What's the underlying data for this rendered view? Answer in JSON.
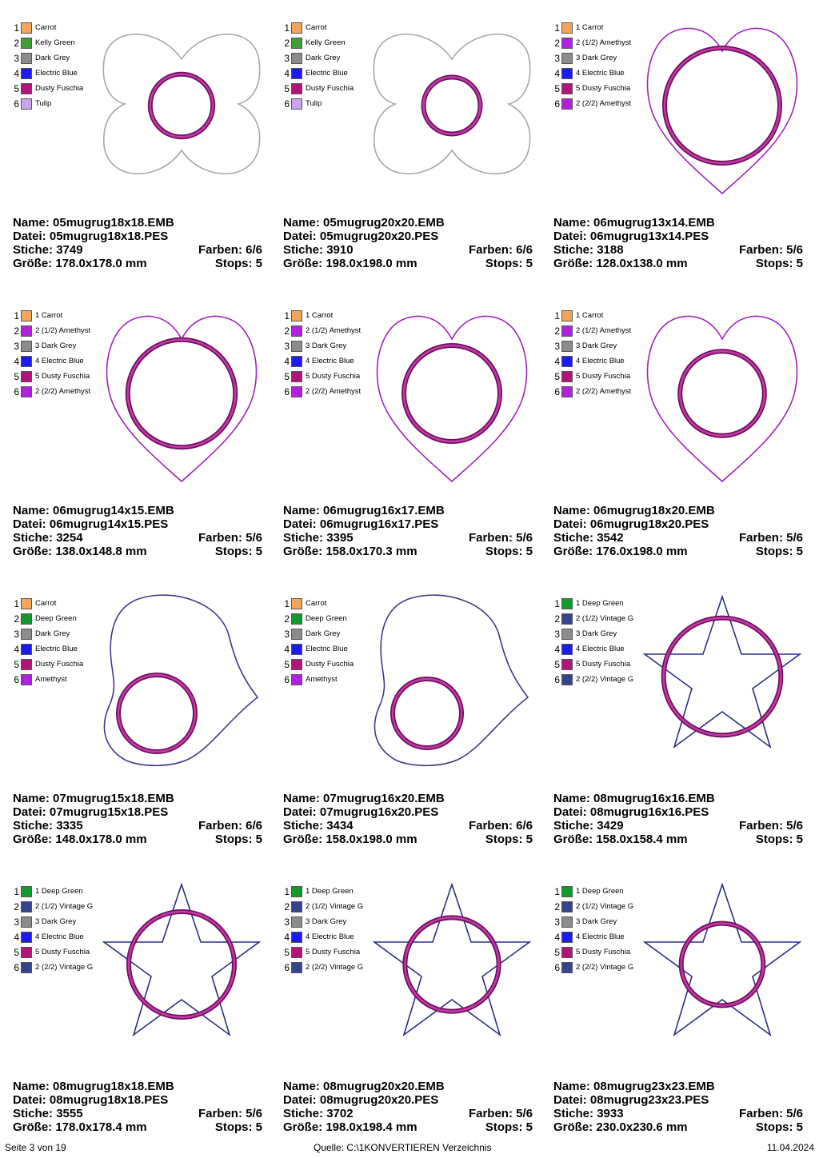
{
  "labels": {
    "name": "Name:",
    "file": "Datei:",
    "stitches": "Stiche:",
    "colors": "Farben:",
    "size": "Größe:",
    "stops": "Stops:"
  },
  "designs": [
    {
      "shape": "flower",
      "ring": 0.42,
      "name": "05mugrug18x18.EMB",
      "file": "05mugrug18x18.PES",
      "stitches": "3749",
      "colors": "6/6",
      "size": "178.0x178.0 mm",
      "stops": "5",
      "legend": [
        {
          "num": "1",
          "label": "Carrot",
          "color": "#f4a35a"
        },
        {
          "num": "2",
          "label": "Kelly Green",
          "color": "#3f9e3a"
        },
        {
          "num": "3",
          "label": "Dark Grey",
          "color": "#8c8c8c"
        },
        {
          "num": "4",
          "label": "Electric Blue",
          "color": "#1b1bf0"
        },
        {
          "num": "5",
          "label": "Dusty Fuschia",
          "color": "#b3127c"
        },
        {
          "num": "6",
          "label": "Tulip",
          "color": "#caa4ee"
        }
      ]
    },
    {
      "shape": "flower",
      "ring": 0.38,
      "name": "05mugrug20x20.EMB",
      "file": "05mugrug20x20.PES",
      "stitches": "3910",
      "colors": "6/6",
      "size": "198.0x198.0 mm",
      "stops": "5",
      "legend": [
        {
          "num": "1",
          "label": "Carrot",
          "color": "#f4a35a"
        },
        {
          "num": "2",
          "label": "Kelly Green",
          "color": "#3f9e3a"
        },
        {
          "num": "3",
          "label": "Dark Grey",
          "color": "#8c8c8c"
        },
        {
          "num": "4",
          "label": "Electric Blue",
          "color": "#1b1bf0"
        },
        {
          "num": "5",
          "label": "Dusty Fuschia",
          "color": "#b3127c"
        },
        {
          "num": "6",
          "label": "Tulip",
          "color": "#caa4ee"
        }
      ]
    },
    {
      "shape": "heart",
      "ring": 0.6,
      "name": "06mugrug13x14.EMB",
      "file": "06mugrug13x14.PES",
      "stitches": "3188",
      "colors": "5/6",
      "size": "128.0x138.0 mm",
      "stops": "5",
      "legend": [
        {
          "num": "1",
          "label": "1 Carrot",
          "color": "#f4a35a"
        },
        {
          "num": "2",
          "label": "2 (1/2) Amethyst",
          "color": "#b31fe0"
        },
        {
          "num": "3",
          "label": "3 Dark Grey",
          "color": "#8c8c8c"
        },
        {
          "num": "4",
          "label": "4 Electric Blue",
          "color": "#1b1bf0"
        },
        {
          "num": "5",
          "label": "5 Dusty Fuschia",
          "color": "#b3127c"
        },
        {
          "num": "6",
          "label": "2 (2/2) Amethyst",
          "color": "#b31fe0"
        }
      ]
    },
    {
      "shape": "heart",
      "ring": 0.56,
      "name": "06mugrug14x15.EMB",
      "file": "06mugrug14x15.PES",
      "stitches": "3254",
      "colors": "5/6",
      "size": "138.0x148.8 mm",
      "stops": "5",
      "legend": [
        {
          "num": "1",
          "label": "1 Carrot",
          "color": "#f4a35a"
        },
        {
          "num": "2",
          "label": "2 (1/2) Amethyst",
          "color": "#b31fe0"
        },
        {
          "num": "3",
          "label": "3 Dark Grey",
          "color": "#8c8c8c"
        },
        {
          "num": "4",
          "label": "4 Electric Blue",
          "color": "#1b1bf0"
        },
        {
          "num": "5",
          "label": "5 Dusty Fuschia",
          "color": "#b3127c"
        },
        {
          "num": "6",
          "label": "2 (2/2) Amethyst",
          "color": "#b31fe0"
        }
      ]
    },
    {
      "shape": "heart",
      "ring": 0.5,
      "name": "06mugrug16x17.EMB",
      "file": "06mugrug16x17.PES",
      "stitches": "3395",
      "colors": "5/6",
      "size": "158.0x170.3 mm",
      "stops": "5",
      "legend": [
        {
          "num": "1",
          "label": "1 Carrot",
          "color": "#f4a35a"
        },
        {
          "num": "2",
          "label": "2 (1/2) Amethyst",
          "color": "#b31fe0"
        },
        {
          "num": "3",
          "label": "3 Dark Grey",
          "color": "#8c8c8c"
        },
        {
          "num": "4",
          "label": "4 Electric Blue",
          "color": "#1b1bf0"
        },
        {
          "num": "5",
          "label": "5 Dusty Fuschia",
          "color": "#b3127c"
        },
        {
          "num": "6",
          "label": "2 (2/2) Amethyst",
          "color": "#b31fe0"
        }
      ]
    },
    {
      "shape": "heart",
      "ring": 0.44,
      "name": "06mugrug18x20.EMB",
      "file": "06mugrug18x20.PES",
      "stitches": "3542",
      "colors": "5/6",
      "size": "176.0x198.0 mm",
      "stops": "5",
      "legend": [
        {
          "num": "1",
          "label": "1 Carrot",
          "color": "#f4a35a"
        },
        {
          "num": "2",
          "label": "2 (1/2) Amethyst",
          "color": "#b31fe0"
        },
        {
          "num": "3",
          "label": "3 Dark Grey",
          "color": "#8c8c8c"
        },
        {
          "num": "4",
          "label": "4 Electric Blue",
          "color": "#1b1bf0"
        },
        {
          "num": "5",
          "label": "5 Dusty Fuschia",
          "color": "#b3127c"
        },
        {
          "num": "6",
          "label": "2 (2/2) Amethyst",
          "color": "#b31fe0"
        }
      ]
    },
    {
      "shape": "tilted-heart",
      "ring": 0.48,
      "name": "07mugrug15x18.EMB",
      "file": "07mugrug15x18.PES",
      "stitches": "3335",
      "colors": "6/6",
      "size": "148.0x178.0 mm",
      "stops": "5",
      "legend": [
        {
          "num": "1",
          "label": "Carrot",
          "color": "#f4a35a"
        },
        {
          "num": "2",
          "label": "Deep Green",
          "color": "#129a2a"
        },
        {
          "num": "3",
          "label": "Dark Grey",
          "color": "#8c8c8c"
        },
        {
          "num": "4",
          "label": "Electric Blue",
          "color": "#1b1bf0"
        },
        {
          "num": "5",
          "label": "Dusty Fuschia",
          "color": "#b3127c"
        },
        {
          "num": "6",
          "label": "Amethyst",
          "color": "#b31fe0"
        }
      ]
    },
    {
      "shape": "tilted-heart",
      "ring": 0.43,
      "name": "07mugrug16x20.EMB",
      "file": "07mugrug16x20.PES",
      "stitches": "3434",
      "colors": "6/6",
      "size": "158.0x198.0 mm",
      "stops": "5",
      "legend": [
        {
          "num": "1",
          "label": "Carrot",
          "color": "#f4a35a"
        },
        {
          "num": "2",
          "label": "Deep Green",
          "color": "#129a2a"
        },
        {
          "num": "3",
          "label": "Dark Grey",
          "color": "#8c8c8c"
        },
        {
          "num": "4",
          "label": "Electric Blue",
          "color": "#1b1bf0"
        },
        {
          "num": "5",
          "label": "Dusty Fuschia",
          "color": "#b3127c"
        },
        {
          "num": "6",
          "label": "Amethyst",
          "color": "#b31fe0"
        }
      ]
    },
    {
      "shape": "star",
      "ring": 0.5,
      "name": "08mugrug16x16.EMB",
      "file": "08mugrug16x16.PES",
      "stitches": "3429",
      "colors": "5/6",
      "size": "158.0x158.4 mm",
      "stops": "5",
      "legend": [
        {
          "num": "1",
          "label": "1 Deep Green",
          "color": "#129a2a"
        },
        {
          "num": "2",
          "label": "2 (1/2) Vintage G",
          "color": "#34448f"
        },
        {
          "num": "3",
          "label": "3 Dark Grey",
          "color": "#8c8c8c"
        },
        {
          "num": "4",
          "label": "4 Electric Blue",
          "color": "#1b1bf0"
        },
        {
          "num": "5",
          "label": "5 Dusty Fuschia",
          "color": "#b3127c"
        },
        {
          "num": "6",
          "label": "2 (2/2) Vintage G",
          "color": "#34448f"
        }
      ]
    },
    {
      "shape": "star",
      "ring": 0.45,
      "name": "08mugrug18x18.EMB",
      "file": "08mugrug18x18.PES",
      "stitches": "3555",
      "colors": "5/6",
      "size": "178.0x178.4 mm",
      "stops": "5",
      "legend": [
        {
          "num": "1",
          "label": "1 Deep Green",
          "color": "#129a2a"
        },
        {
          "num": "2",
          "label": "2 (1/2) Vintage G",
          "color": "#34448f"
        },
        {
          "num": "3",
          "label": "3 Dark Grey",
          "color": "#8c8c8c"
        },
        {
          "num": "4",
          "label": "4 Electric Blue",
          "color": "#1b1bf0"
        },
        {
          "num": "5",
          "label": "5 Dusty Fuschia",
          "color": "#b3127c"
        },
        {
          "num": "6",
          "label": "2 (2/2) Vintage G",
          "color": "#34448f"
        }
      ]
    },
    {
      "shape": "star",
      "ring": 0.4,
      "name": "08mugrug20x20.EMB",
      "file": "08mugrug20x20.PES",
      "stitches": "3702",
      "colors": "5/6",
      "size": "198.0x198.4 mm",
      "stops": "5",
      "legend": [
        {
          "num": "1",
          "label": "1 Deep Green",
          "color": "#129a2a"
        },
        {
          "num": "2",
          "label": "2 (1/2) Vintage G",
          "color": "#34448f"
        },
        {
          "num": "3",
          "label": "3 Dark Grey",
          "color": "#8c8c8c"
        },
        {
          "num": "4",
          "label": "4 Electric Blue",
          "color": "#1b1bf0"
        },
        {
          "num": "5",
          "label": "5 Dusty Fuschia",
          "color": "#b3127c"
        },
        {
          "num": "6",
          "label": "2 (2/2) Vintage G",
          "color": "#34448f"
        }
      ]
    },
    {
      "shape": "star",
      "ring": 0.35,
      "name": "08mugrug23x23.EMB",
      "file": "08mugrug23x23.PES",
      "stitches": "3933",
      "colors": "5/6",
      "size": "230.0x230.6 mm",
      "stops": "5",
      "legend": [
        {
          "num": "1",
          "label": "1 Deep Green",
          "color": "#129a2a"
        },
        {
          "num": "2",
          "label": "2 (1/2) Vintage G",
          "color": "#34448f"
        },
        {
          "num": "3",
          "label": "3 Dark Grey",
          "color": "#8c8c8c"
        },
        {
          "num": "4",
          "label": "4 Electric Blue",
          "color": "#1b1bf0"
        },
        {
          "num": "5",
          "label": "5 Dusty Fuschia",
          "color": "#b3127c"
        },
        {
          "num": "6",
          "label": "2 (2/2) Vintage G",
          "color": "#34448f"
        }
      ]
    }
  ],
  "outline_colors": {
    "flower": "#a8a8a8",
    "heart": "#a020c0",
    "tilted-heart": "#403a8a",
    "star": "#2a3080"
  },
  "ring_colors": {
    "outer": "#6e0f5e",
    "inner": "#c43aa8"
  },
  "footer": {
    "page": "Seite 3 von 19",
    "source": "Quelle: C:\\1KONVERTIEREN Verzeichnis",
    "date": "11.04.2024"
  }
}
